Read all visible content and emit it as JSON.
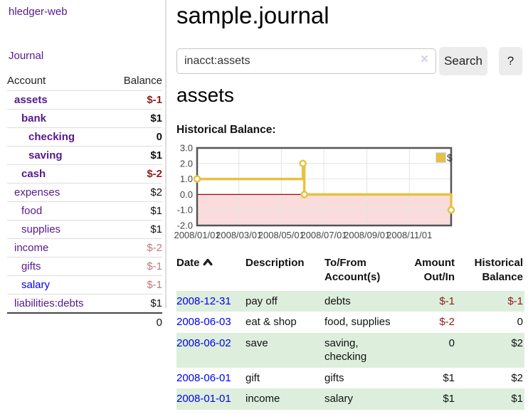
{
  "colors": {
    "link_purple": "#551a8b",
    "link_blue": "#0000ee",
    "negative_strong": "#8f1b1b",
    "negative_soft": "#bf7878",
    "row_green": "#ddeedd",
    "series_gold": "#e7c240",
    "negative_region_pink": "#fadcdc",
    "zero_line_red": "#aa0000",
    "plot_border": "#545454"
  },
  "sidebar": {
    "brand": "hledger-web",
    "nav": {
      "journal": "Journal"
    },
    "accounts": {
      "header": {
        "account": "Account",
        "balance": "Balance"
      },
      "rows": [
        {
          "name": "assets",
          "depth": 0,
          "bold": true,
          "balance": "$-1",
          "tone": "neg-strong"
        },
        {
          "name": "bank",
          "depth": 1,
          "bold": true,
          "balance": "$1",
          "tone": "pos"
        },
        {
          "name": "checking",
          "depth": 2,
          "bold": true,
          "balance": "0",
          "tone": "pos"
        },
        {
          "name": "saving",
          "depth": 2,
          "bold": true,
          "balance": "$1",
          "tone": "pos"
        },
        {
          "name": "cash",
          "depth": 1,
          "bold": true,
          "balance": "$-2",
          "tone": "neg-strong"
        },
        {
          "name": "expenses",
          "depth": 0,
          "bold": false,
          "balance": "$2",
          "tone": "pos"
        },
        {
          "name": "food",
          "depth": 1,
          "bold": false,
          "balance": "$1",
          "tone": "pos"
        },
        {
          "name": "supplies",
          "depth": 1,
          "bold": false,
          "balance": "$1",
          "tone": "pos"
        },
        {
          "name": "income",
          "depth": 0,
          "bold": false,
          "balance": "$-2",
          "tone": "neg-soft"
        },
        {
          "name": "gifts",
          "depth": 1,
          "bold": false,
          "balance": "$-1",
          "tone": "neg-soft"
        },
        {
          "name": "salary",
          "depth": 1,
          "bold": false,
          "balance": "$-1",
          "tone": "neg-soft",
          "unvisited": true
        },
        {
          "name": "liabilities:debts",
          "depth": 0,
          "bold": false,
          "balance": "$1",
          "tone": "pos"
        }
      ],
      "total": "0"
    }
  },
  "main": {
    "title": "sample.journal",
    "search": {
      "value": "inacct:assets",
      "clear_label": "×",
      "button": "Search",
      "help": "?"
    },
    "account_heading": "assets",
    "chart_label": "Historical Balance:",
    "register": {
      "columns": {
        "date": "Date",
        "description": "Description",
        "accounts1": "To/From",
        "accounts2": "Account(s)",
        "amount1": "Amount",
        "amount2": "Out/In",
        "balance1": "Historical",
        "balance2": "Balance"
      },
      "rows": [
        {
          "date": "2008-12-31",
          "desc": "pay off",
          "accounts": "debts",
          "amount": "$-1",
          "amount_tone": "neg-strong",
          "balance": "$-1",
          "balance_tone": "neg-strong",
          "shade": true
        },
        {
          "date": "2008-06-03",
          "desc": "eat & shop",
          "accounts": "food, supplies",
          "amount": "$-2",
          "amount_tone": "neg-strong",
          "balance": "0",
          "balance_tone": "pos",
          "shade": false
        },
        {
          "date": "2008-06-02",
          "desc": "save",
          "accounts": "saving, checking",
          "amount": "0",
          "amount_tone": "pos",
          "balance": "$2",
          "balance_tone": "pos",
          "shade": true
        },
        {
          "date": "2008-06-01",
          "desc": "gift",
          "accounts": "gifts",
          "amount": "$1",
          "amount_tone": "pos",
          "balance": "$2",
          "balance_tone": "pos",
          "shade": false
        },
        {
          "date": "2008-01-01",
          "desc": "income",
          "accounts": "salary",
          "amount": "$1",
          "amount_tone": "pos",
          "balance": "$1",
          "balance_tone": "pos",
          "shade": true
        }
      ]
    }
  },
  "chart_data": {
    "type": "line",
    "title": "Historical Balance:",
    "step": true,
    "series": [
      {
        "name": "$",
        "color": "#e7c240",
        "points": [
          [
            "2008-01-01",
            1
          ],
          [
            "2008-06-01",
            2
          ],
          [
            "2008-06-03",
            0
          ],
          [
            "2008-12-31",
            -1
          ]
        ]
      }
    ],
    "x_range": [
      "2008-01-01",
      "2008-12-31"
    ],
    "ylim": [
      -2,
      3
    ],
    "y_ticks": [
      3,
      2,
      1,
      0,
      -1,
      -2
    ],
    "x_ticks": [
      "2008/01/01",
      "2008/03/01",
      "2008/05/01",
      "2008/07/01",
      "2008/09/01",
      "2008/11/01"
    ],
    "grid": true,
    "legend_position": "top-right",
    "negative_fill": "#fadcdc",
    "zero_line_color": "#aa0000"
  }
}
